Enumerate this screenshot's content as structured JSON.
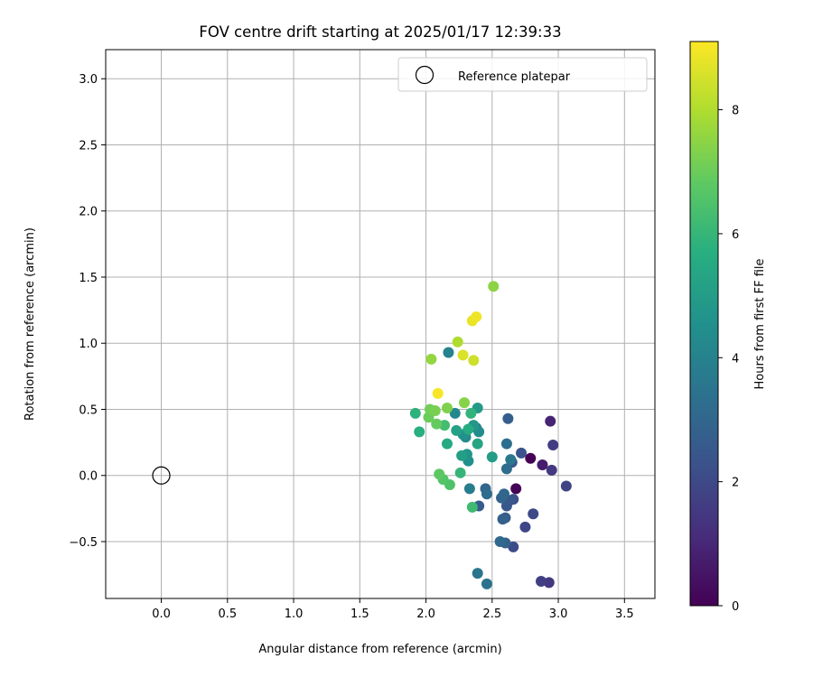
{
  "chart_data": {
    "type": "scatter",
    "title": "FOV centre drift starting at 2025/01/17 12:39:33",
    "xlabel": "Angular distance from reference (arcmin)",
    "ylabel": "Rotation from reference (arcmin)",
    "xlim": [
      -0.42,
      3.73
    ],
    "ylim": [
      -0.93,
      3.22
    ],
    "xticks": [
      0.0,
      0.5,
      1.0,
      1.5,
      2.0,
      2.5,
      3.0,
      3.5
    ],
    "xtick_labels": [
      "0.0",
      "0.5",
      "1.0",
      "1.5",
      "2.0",
      "2.5",
      "3.0",
      "3.5"
    ],
    "yticks": [
      -0.5,
      0.0,
      0.5,
      1.0,
      1.5,
      2.0,
      2.5,
      3.0
    ],
    "ytick_labels": [
      "−0.5",
      "0.0",
      "0.5",
      "1.0",
      "1.5",
      "2.0",
      "2.5",
      "3.0"
    ],
    "grid": true,
    "legend": {
      "position": "upper right",
      "entries": [
        {
          "label": "Reference platepar",
          "marker": "open-circle"
        }
      ]
    },
    "reference_point": {
      "x": 0.0,
      "y": 0.0
    },
    "colorbar": {
      "label": "Hours from first FF file",
      "range": [
        0,
        9.1
      ],
      "ticks": [
        0,
        2,
        4,
        6,
        8
      ],
      "tick_labels": [
        "0",
        "2",
        "4",
        "6",
        "8"
      ],
      "colormap": "viridis"
    },
    "points": [
      {
        "x": 2.79,
        "y": 0.13,
        "h": 0.0
      },
      {
        "x": 2.68,
        "y": -0.1,
        "h": 0.1
      },
      {
        "x": 2.88,
        "y": 0.08,
        "h": 0.7
      },
      {
        "x": 2.94,
        "y": 0.41,
        "h": 0.9
      },
      {
        "x": 2.93,
        "y": -0.81,
        "h": 1.5
      },
      {
        "x": 2.87,
        "y": -0.8,
        "h": 1.7
      },
      {
        "x": 2.95,
        "y": 0.04,
        "h": 1.5
      },
      {
        "x": 2.96,
        "y": 0.23,
        "h": 1.6
      },
      {
        "x": 3.06,
        "y": -0.08,
        "h": 1.8
      },
      {
        "x": 2.75,
        "y": -0.39,
        "h": 1.9
      },
      {
        "x": 2.81,
        "y": -0.29,
        "h": 2.0
      },
      {
        "x": 2.66,
        "y": -0.54,
        "h": 2.1
      },
      {
        "x": 2.72,
        "y": 0.17,
        "h": 2.3
      },
      {
        "x": 2.65,
        "y": 0.1,
        "h": 2.4
      },
      {
        "x": 2.66,
        "y": -0.18,
        "h": 2.2
      },
      {
        "x": 2.63,
        "y": -0.19,
        "h": 2.5
      },
      {
        "x": 2.6,
        "y": -0.32,
        "h": 2.6
      },
      {
        "x": 2.62,
        "y": 0.43,
        "h": 2.7
      },
      {
        "x": 2.6,
        "y": -0.51,
        "h": 2.8
      },
      {
        "x": 2.61,
        "y": -0.23,
        "h": 2.5
      },
      {
        "x": 2.57,
        "y": -0.17,
        "h": 2.9
      },
      {
        "x": 2.59,
        "y": -0.14,
        "h": 3.0
      },
      {
        "x": 2.56,
        "y": -0.5,
        "h": 3.1
      },
      {
        "x": 2.58,
        "y": -0.33,
        "h": 2.8
      },
      {
        "x": 2.61,
        "y": 0.05,
        "h": 3.2
      },
      {
        "x": 2.61,
        "y": 0.24,
        "h": 3.3
      },
      {
        "x": 2.4,
        "y": -0.23,
        "h": 2.6
      },
      {
        "x": 2.45,
        "y": -0.1,
        "h": 3.0
      },
      {
        "x": 2.46,
        "y": -0.14,
        "h": 3.2
      },
      {
        "x": 2.46,
        "y": -0.82,
        "h": 3.4
      },
      {
        "x": 2.39,
        "y": -0.74,
        "h": 3.5
      },
      {
        "x": 2.64,
        "y": 0.12,
        "h": 3.6
      },
      {
        "x": 2.38,
        "y": 0.36,
        "h": 3.7
      },
      {
        "x": 2.33,
        "y": -0.1,
        "h": 3.8
      },
      {
        "x": 2.17,
        "y": 0.93,
        "h": 4.0
      },
      {
        "x": 2.22,
        "y": 0.47,
        "h": 4.2
      },
      {
        "x": 2.3,
        "y": 0.29,
        "h": 4.3
      },
      {
        "x": 2.4,
        "y": 0.33,
        "h": 4.4
      },
      {
        "x": 2.32,
        "y": 0.11,
        "h": 4.5
      },
      {
        "x": 2.28,
        "y": 0.31,
        "h": 4.6
      },
      {
        "x": 2.31,
        "y": 0.16,
        "h": 4.7
      },
      {
        "x": 2.36,
        "y": 0.38,
        "h": 4.8
      },
      {
        "x": 2.39,
        "y": 0.51,
        "h": 4.9
      },
      {
        "x": 2.5,
        "y": 0.14,
        "h": 5.0
      },
      {
        "x": 2.27,
        "y": 0.15,
        "h": 5.1
      },
      {
        "x": 2.23,
        "y": 0.34,
        "h": 5.2
      },
      {
        "x": 2.39,
        "y": 0.24,
        "h": 5.3
      },
      {
        "x": 2.16,
        "y": 0.24,
        "h": 5.5
      },
      {
        "x": 2.32,
        "y": 0.35,
        "h": 5.6
      },
      {
        "x": 1.95,
        "y": 0.33,
        "h": 5.7
      },
      {
        "x": 1.92,
        "y": 0.47,
        "h": 5.8
      },
      {
        "x": 2.34,
        "y": 0.47,
        "h": 5.9
      },
      {
        "x": 2.26,
        "y": 0.02,
        "h": 6.0
      },
      {
        "x": 2.35,
        "y": -0.24,
        "h": 6.2
      },
      {
        "x": 2.14,
        "y": 0.38,
        "h": 6.3
      },
      {
        "x": 2.18,
        "y": -0.07,
        "h": 6.5
      },
      {
        "x": 2.13,
        "y": -0.03,
        "h": 6.6
      },
      {
        "x": 2.1,
        "y": 0.01,
        "h": 6.8
      },
      {
        "x": 2.08,
        "y": 0.39,
        "h": 6.9
      },
      {
        "x": 2.02,
        "y": 0.44,
        "h": 7.0
      },
      {
        "x": 2.03,
        "y": 0.5,
        "h": 7.1
      },
      {
        "x": 2.07,
        "y": 0.49,
        "h": 7.2
      },
      {
        "x": 2.16,
        "y": 0.51,
        "h": 7.3
      },
      {
        "x": 2.29,
        "y": 0.55,
        "h": 7.4
      },
      {
        "x": 2.51,
        "y": 1.43,
        "h": 7.5
      },
      {
        "x": 2.04,
        "y": 0.88,
        "h": 7.6
      },
      {
        "x": 2.24,
        "y": 1.01,
        "h": 8.0
      },
      {
        "x": 2.36,
        "y": 0.87,
        "h": 8.4
      },
      {
        "x": 2.28,
        "y": 0.91,
        "h": 8.6
      },
      {
        "x": 2.35,
        "y": 1.17,
        "h": 8.8
      },
      {
        "x": 2.38,
        "y": 1.2,
        "h": 8.9
      },
      {
        "x": 2.09,
        "y": 0.62,
        "h": 9.0
      }
    ]
  }
}
